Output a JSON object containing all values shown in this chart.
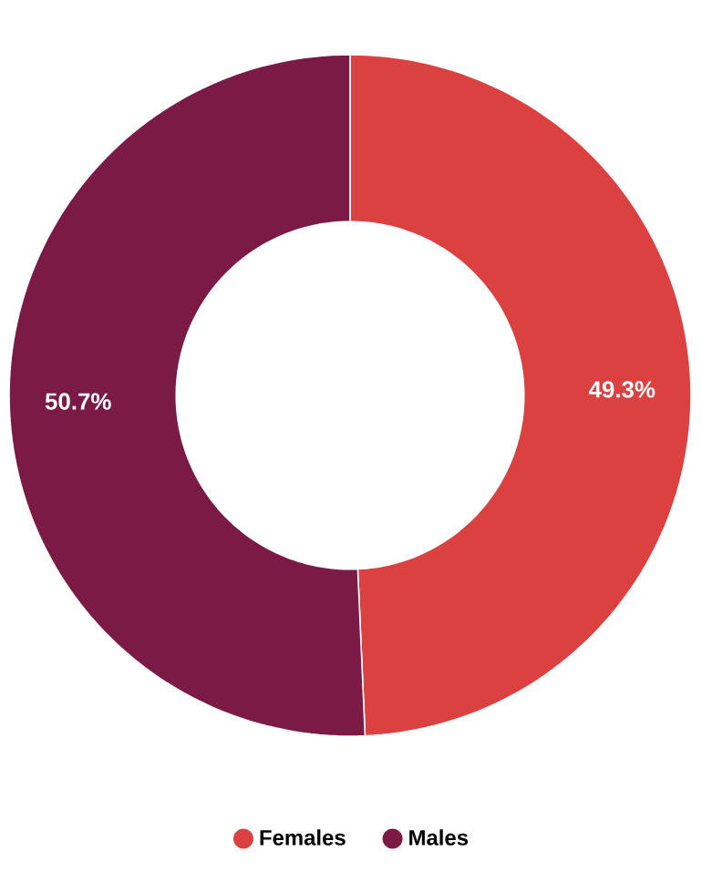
{
  "chart_data": {
    "type": "donut",
    "categories": [
      "Females",
      "Males"
    ],
    "values": [
      49.3,
      50.7
    ],
    "colors": [
      "#db4140",
      "#7b1a45"
    ],
    "value_labels": [
      "49.3%",
      "50.7%"
    ],
    "legend": "bottom"
  }
}
